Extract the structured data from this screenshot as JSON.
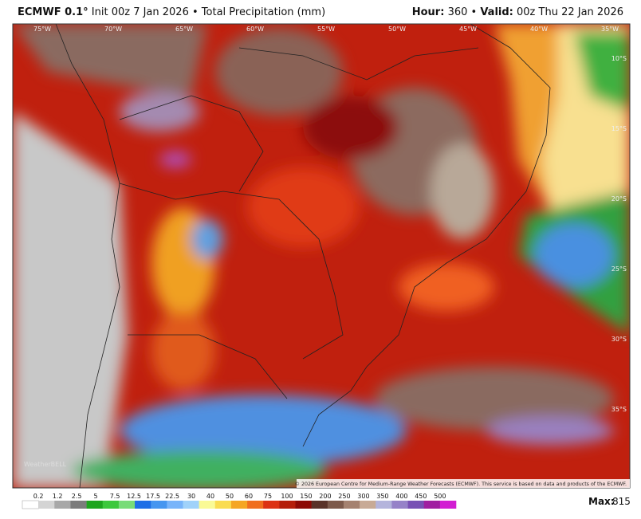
{
  "header": {
    "model": "ECMWF 0.1°",
    "init": "Init 00z 7 Jan 2026 • Total Precipitation (mm)",
    "hour_label": "Hour:",
    "hour": "360 •",
    "valid_label": "Valid:",
    "valid": "00z Thu 22 Jan 2026"
  },
  "map": {
    "lon_labels": [
      "75°W",
      "70°W",
      "65°W",
      "60°W",
      "55°W",
      "50°W",
      "45°W",
      "40°W",
      "35°W"
    ],
    "lat_labels": [
      "10°S",
      "15°S",
      "20°S",
      "25°S",
      "30°S",
      "35°S"
    ],
    "credit": "© 2026 European Centre for Medium-Range Weather Forecasts (ECMWF). This service is based on data and products of the ECMWF.",
    "watermark": "WeatherBELL"
  },
  "colorbar": {
    "labels": [
      "0.2",
      "1.2",
      "2.5",
      "5",
      "7.5",
      "12.5",
      "17.5",
      "22.5",
      "30",
      "40",
      "50",
      "60",
      "75",
      "100",
      "150",
      "200",
      "250",
      "300",
      "350",
      "400",
      "450",
      "500"
    ],
    "colors": [
      "#ffffff",
      "#d4d4d4",
      "#a8a8a8",
      "#7c7c7c",
      "#1ea51e",
      "#3cc83c",
      "#78dc78",
      "#1e6ee6",
      "#4696f0",
      "#78b4fa",
      "#a0d2fa",
      "#fafa96",
      "#fadc50",
      "#f5a623",
      "#f06e1e",
      "#dc3214",
      "#b41e0a",
      "#8c0a05",
      "#5a3228",
      "#7d5a4b",
      "#a58270",
      "#c8aa96",
      "#b4b4dc",
      "#9682c8",
      "#7850b4",
      "#a01ea0",
      "#d21ed2"
    ],
    "max_label": "Max:",
    "max": "815"
  }
}
